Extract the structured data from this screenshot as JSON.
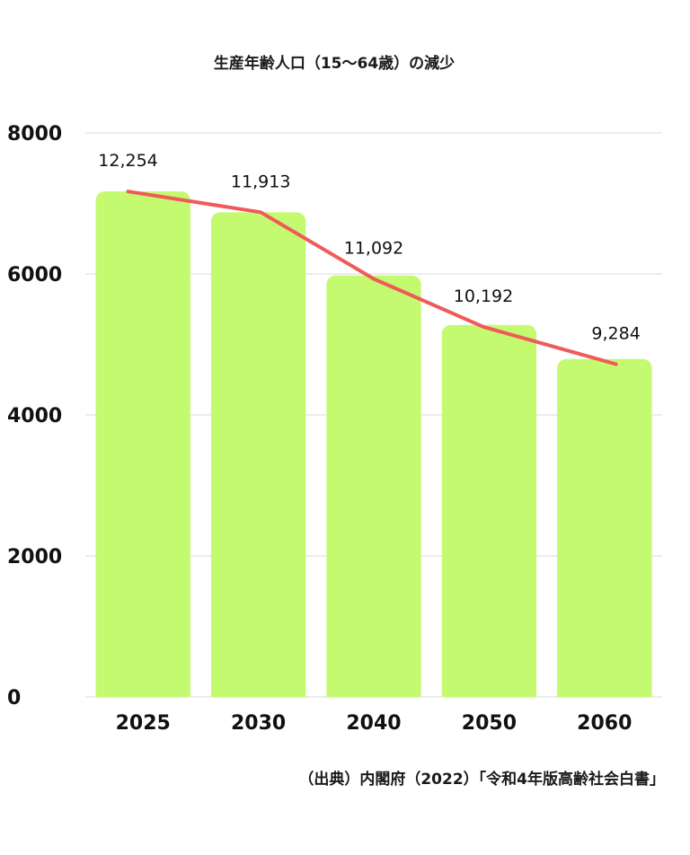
{
  "colors": {
    "bar": "#c4fa70",
    "line": "#f05a5a",
    "grid": "#d9d9d9",
    "text": "#111111"
  },
  "chart_data": {
    "type": "bar",
    "title": "生産年齢人口（15〜64歳）の減少",
    "categories": [
      "2025",
      "2030",
      "2040",
      "2050",
      "2060"
    ],
    "values": [
      7170,
      6875,
      5978,
      5275,
      4793
    ],
    "data_labels": [
      "12,254",
      "11,913",
      "11,092",
      "10,192",
      "9,284"
    ],
    "line_values": [
      7170,
      6875,
      5930,
      5250,
      4720
    ],
    "ylim": [
      0,
      8000
    ],
    "yticks": [
      0,
      2000,
      4000,
      6000,
      8000
    ],
    "grid": true,
    "legend": "none",
    "xlabel": "",
    "ylabel": "",
    "source": "（出典）内閣府（2022）「令和4年版高齢社会白書」"
  }
}
